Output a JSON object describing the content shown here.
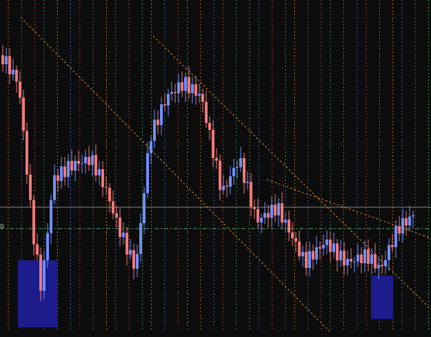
{
  "price_label": "0"
}
